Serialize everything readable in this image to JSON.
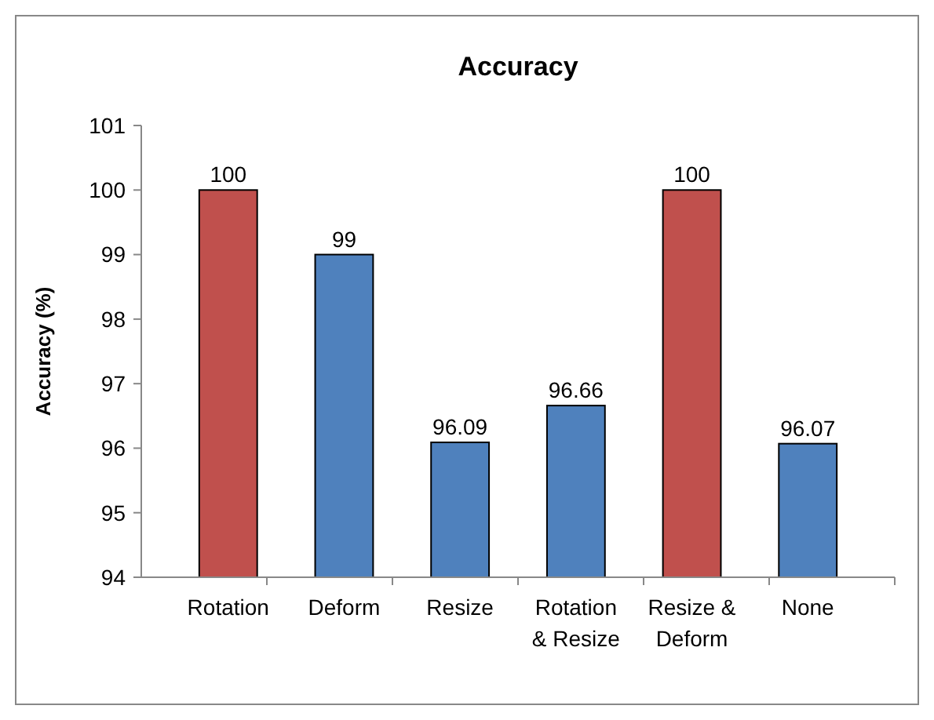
{
  "chart_data": {
    "type": "bar",
    "title": "Accuracy",
    "ylabel": "Accuracy (%)",
    "categories": [
      "Rotation",
      "Deform",
      "Resize",
      "Rotation & Resize",
      "Resize & Deform",
      "None"
    ],
    "values": [
      100,
      99,
      96.09,
      96.66,
      100,
      96.07
    ],
    "colors": [
      "#c0504d",
      "#4f81bd",
      "#4f81bd",
      "#4f81bd",
      "#c0504d",
      "#4f81bd"
    ],
    "ylim": [
      94,
      101
    ],
    "yticks": [
      94,
      95,
      96,
      97,
      98,
      99,
      100,
      101
    ],
    "data_labels": true,
    "grid": false,
    "legend": false
  }
}
